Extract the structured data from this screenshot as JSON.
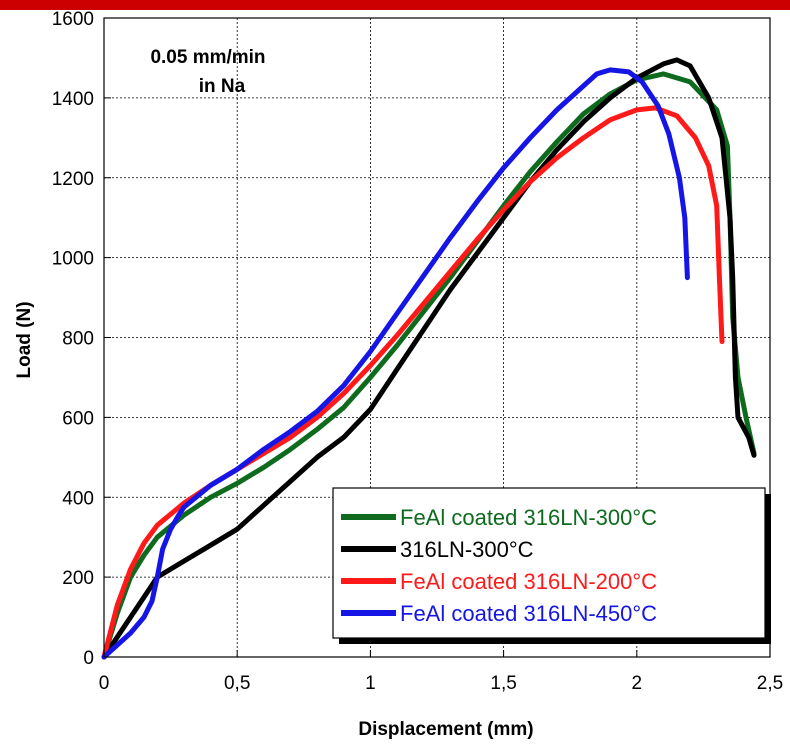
{
  "chart_data": {
    "type": "line",
    "title": "",
    "xlabel": "Displacement (mm)",
    "ylabel": "Load (N)",
    "xlim": [
      0,
      2.5
    ],
    "ylim": [
      0,
      1600
    ],
    "x_ticks": [
      0,
      0.5,
      1,
      1.5,
      2,
      2.5
    ],
    "x_tick_labels": [
      "0",
      "0,5",
      "1",
      "1,5",
      "2",
      "2,5"
    ],
    "y_ticks": [
      0,
      200,
      400,
      600,
      800,
      1000,
      1200,
      1400,
      1600
    ],
    "y_tick_labels": [
      "0",
      "200",
      "400",
      "600",
      "800",
      "1000",
      "1200",
      "1400",
      "1600"
    ],
    "grid": true,
    "legend_position": "bottom-right",
    "annotation": [
      "0.05 mm/min",
      "in Na"
    ],
    "accent_color": "#cc0000",
    "series": [
      {
        "name": "FeAl coated 316LN-300°C",
        "color": "#0e6b1e",
        "points": [
          [
            0,
            0
          ],
          [
            0.05,
            110
          ],
          [
            0.1,
            200
          ],
          [
            0.15,
            255
          ],
          [
            0.2,
            300
          ],
          [
            0.3,
            355
          ],
          [
            0.4,
            400
          ],
          [
            0.5,
            435
          ],
          [
            0.6,
            475
          ],
          [
            0.7,
            520
          ],
          [
            0.8,
            570
          ],
          [
            0.9,
            625
          ],
          [
            1.0,
            700
          ],
          [
            1.1,
            780
          ],
          [
            1.2,
            865
          ],
          [
            1.3,
            950
          ],
          [
            1.4,
            1040
          ],
          [
            1.5,
            1130
          ],
          [
            1.6,
            1215
          ],
          [
            1.7,
            1290
          ],
          [
            1.8,
            1360
          ],
          [
            1.9,
            1410
          ],
          [
            2.0,
            1445
          ],
          [
            2.1,
            1460
          ],
          [
            2.2,
            1440
          ],
          [
            2.3,
            1370
          ],
          [
            2.34,
            1280
          ],
          [
            2.35,
            1100
          ],
          [
            2.36,
            850
          ],
          [
            2.38,
            700
          ],
          [
            2.41,
            600
          ],
          [
            2.44,
            510
          ]
        ]
      },
      {
        "name": "316LN-300°C",
        "color": "#000000",
        "points": [
          [
            0,
            0
          ],
          [
            0.05,
            50
          ],
          [
            0.1,
            100
          ],
          [
            0.15,
            150
          ],
          [
            0.2,
            200
          ],
          [
            0.3,
            240
          ],
          [
            0.4,
            280
          ],
          [
            0.5,
            320
          ],
          [
            0.6,
            380
          ],
          [
            0.7,
            440
          ],
          [
            0.8,
            500
          ],
          [
            0.9,
            550
          ],
          [
            1.0,
            620
          ],
          [
            1.1,
            720
          ],
          [
            1.2,
            820
          ],
          [
            1.3,
            920
          ],
          [
            1.4,
            1010
          ],
          [
            1.5,
            1100
          ],
          [
            1.6,
            1190
          ],
          [
            1.7,
            1270
          ],
          [
            1.8,
            1340
          ],
          [
            1.9,
            1400
          ],
          [
            2.0,
            1450
          ],
          [
            2.1,
            1485
          ],
          [
            2.15,
            1495
          ],
          [
            2.2,
            1480
          ],
          [
            2.27,
            1400
          ],
          [
            2.32,
            1300
          ],
          [
            2.35,
            1100
          ],
          [
            2.36,
            950
          ],
          [
            2.37,
            700
          ],
          [
            2.38,
            600
          ],
          [
            2.42,
            550
          ],
          [
            2.44,
            505
          ]
        ]
      },
      {
        "name": "FeAl coated 316LN-200°C",
        "color": "#ff1a1a",
        "points": [
          [
            0,
            0
          ],
          [
            0.05,
            130
          ],
          [
            0.1,
            220
          ],
          [
            0.15,
            285
          ],
          [
            0.2,
            330
          ],
          [
            0.3,
            385
          ],
          [
            0.4,
            430
          ],
          [
            0.5,
            470
          ],
          [
            0.6,
            510
          ],
          [
            0.7,
            550
          ],
          [
            0.8,
            600
          ],
          [
            0.9,
            660
          ],
          [
            1.0,
            730
          ],
          [
            1.1,
            805
          ],
          [
            1.2,
            885
          ],
          [
            1.3,
            965
          ],
          [
            1.4,
            1045
          ],
          [
            1.5,
            1120
          ],
          [
            1.6,
            1190
          ],
          [
            1.7,
            1250
          ],
          [
            1.8,
            1300
          ],
          [
            1.9,
            1345
          ],
          [
            2.0,
            1370
          ],
          [
            2.07,
            1375
          ],
          [
            2.15,
            1355
          ],
          [
            2.22,
            1300
          ],
          [
            2.27,
            1230
          ],
          [
            2.3,
            1130
          ],
          [
            2.31,
            950
          ],
          [
            2.32,
            790
          ]
        ]
      },
      {
        "name": "FeAl coated 316LN-450°C",
        "color": "#1515e6",
        "points": [
          [
            0,
            0
          ],
          [
            0.05,
            30
          ],
          [
            0.1,
            60
          ],
          [
            0.15,
            100
          ],
          [
            0.18,
            140
          ],
          [
            0.2,
            200
          ],
          [
            0.22,
            270
          ],
          [
            0.25,
            320
          ],
          [
            0.28,
            355
          ],
          [
            0.3,
            375
          ],
          [
            0.4,
            430
          ],
          [
            0.5,
            470
          ],
          [
            0.6,
            520
          ],
          [
            0.7,
            565
          ],
          [
            0.8,
            615
          ],
          [
            0.9,
            680
          ],
          [
            1.0,
            765
          ],
          [
            1.1,
            860
          ],
          [
            1.2,
            955
          ],
          [
            1.3,
            1050
          ],
          [
            1.4,
            1140
          ],
          [
            1.5,
            1225
          ],
          [
            1.6,
            1300
          ],
          [
            1.7,
            1370
          ],
          [
            1.8,
            1430
          ],
          [
            1.85,
            1460
          ],
          [
            1.9,
            1470
          ],
          [
            1.97,
            1465
          ],
          [
            2.02,
            1440
          ],
          [
            2.08,
            1380
          ],
          [
            2.12,
            1310
          ],
          [
            2.16,
            1200
          ],
          [
            2.18,
            1100
          ],
          [
            2.19,
            950
          ]
        ]
      }
    ]
  }
}
